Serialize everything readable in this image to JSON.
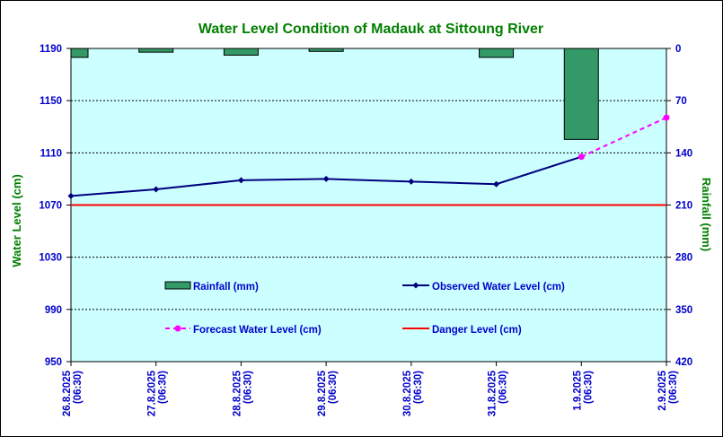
{
  "colors": {
    "plot_bg": "#ccffff",
    "title": "#008000",
    "axis_text": "#0000cc",
    "axis_title": "#008000",
    "rainfall": "#339966",
    "observed": "#000080",
    "forecast": "#ff00ff",
    "danger": "#ff0000"
  },
  "chart_data": {
    "type": "line",
    "title": "Water Level Condition of Madauk at Sittoung River",
    "ylabel": "Water Level (cm)",
    "y2label": "Rainfall (mm)",
    "ylim": [
      950,
      1190
    ],
    "yticks": [
      950,
      990,
      1030,
      1070,
      1110,
      1150,
      1190
    ],
    "y2lim": [
      420,
      0
    ],
    "y2ticks": [
      0,
      70,
      140,
      210,
      280,
      350,
      420
    ],
    "categories": [
      [
        "26.8.2025",
        "(06:30)"
      ],
      [
        "27.8.2025",
        "(06:30)"
      ],
      [
        "28.8.2025",
        "(06:30)"
      ],
      [
        "29.8.2025",
        "(06:30)"
      ],
      [
        "30.8.2025",
        "(06:30)"
      ],
      [
        "31.8.2025",
        "(06:30)"
      ],
      [
        "1.9.2025",
        "(06:30)"
      ],
      [
        "2.9.2025",
        "(06:30)"
      ]
    ],
    "series": [
      {
        "name": "Rainfall (mm)",
        "kind": "bar",
        "axis": "right",
        "values": [
          12,
          5,
          9,
          4,
          null,
          12,
          122,
          null
        ]
      },
      {
        "name": "Observed Water Level (cm)",
        "kind": "line",
        "axis": "left",
        "values": [
          1077,
          1082,
          1089,
          1090,
          1088,
          1086,
          1107,
          null
        ]
      },
      {
        "name": "Forecast Water Level (cm)",
        "kind": "line-dashed",
        "axis": "left",
        "values": [
          null,
          null,
          null,
          null,
          null,
          null,
          1107,
          1137
        ]
      },
      {
        "name": "Danger Level (cm)",
        "kind": "hline",
        "axis": "left",
        "value": 1070
      }
    ],
    "legend": "inside-lower-center"
  }
}
